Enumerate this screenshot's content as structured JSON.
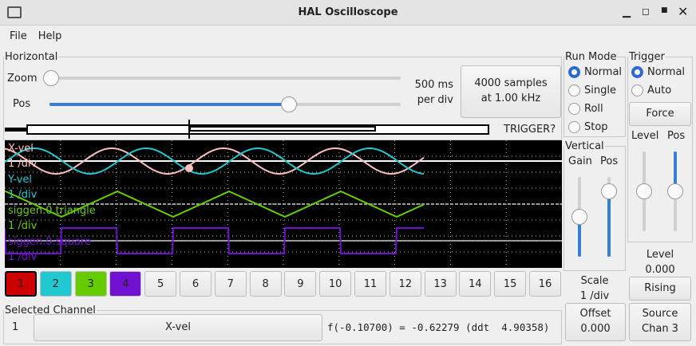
{
  "window": {
    "title": "HAL Oscilloscope"
  },
  "menu": [
    "File",
    "Help"
  ],
  "horizontal": {
    "legend": "Horizontal",
    "zoom_label": "Zoom",
    "pos_label": "Pos",
    "zoom_value": 0,
    "pos_value": 0.68,
    "rate_line1": "500 ms",
    "rate_line2": "per div",
    "samples_line1": "4000 samples",
    "samples_line2": "at 1.00 kHz",
    "trigger_status": "TRIGGER?"
  },
  "run_mode": {
    "legend": "Run Mode",
    "options": [
      "Normal",
      "Single",
      "Roll",
      "Stop"
    ],
    "selected": "Normal"
  },
  "trigger": {
    "legend": "Trigger",
    "options": [
      "Normal",
      "Auto"
    ],
    "selected": "Normal",
    "force": "Force",
    "level_label": "Level",
    "pos_label": "Pos",
    "level_title": "Level",
    "level_value": "0.000",
    "edge": "Rising",
    "source_line1": "Source",
    "source_line2": "Chan 3"
  },
  "vertical": {
    "legend": "Vertical",
    "gain_label": "Gain",
    "pos_label": "Pos",
    "scale_line1": "Scale",
    "scale_line2": "1 /div",
    "offset_line1": "Offset",
    "offset_line2": "0.000"
  },
  "traces": [
    {
      "name": "X-vel",
      "scale": "1 /div",
      "color": "#ffc0c0"
    },
    {
      "name": "Y-vel",
      "scale": "1 /div",
      "color": "#20c8d0"
    },
    {
      "name": "siggen.0.triangle",
      "scale": "1 /div",
      "color": "#66cc00"
    },
    {
      "name": "siggen.0.square",
      "scale": "1 /div",
      "color": "#7010d0"
    }
  ],
  "channels": [
    {
      "label": "1",
      "color": "#cc0000"
    },
    {
      "label": "2",
      "color": "#20c8d0"
    },
    {
      "label": "3",
      "color": "#66cc00"
    },
    {
      "label": "4",
      "color": "#7010d0"
    },
    {
      "label": "5"
    },
    {
      "label": "6"
    },
    {
      "label": "7"
    },
    {
      "label": "8"
    },
    {
      "label": "9"
    },
    {
      "label": "10"
    },
    {
      "label": "11"
    },
    {
      "label": "12"
    },
    {
      "label": "13"
    },
    {
      "label": "14"
    },
    {
      "label": "15"
    },
    {
      "label": "16"
    }
  ],
  "selected_channel": {
    "legend": "Selected Channel",
    "number": "1",
    "name": "X-vel",
    "readout": "f(-0.10700) = -0.62279 (ddt  4.90358)"
  }
}
